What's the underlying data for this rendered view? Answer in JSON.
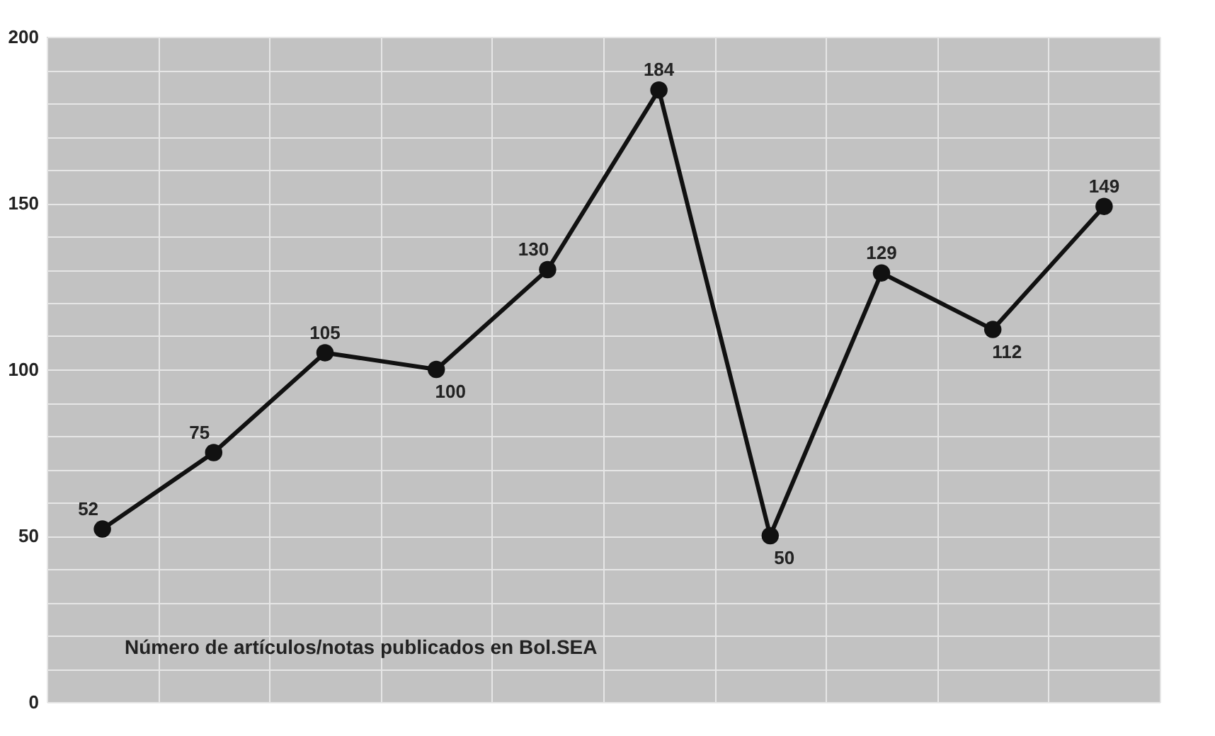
{
  "chart_data": {
    "type": "line",
    "categories": [
      null,
      null,
      null,
      null,
      null,
      null,
      null,
      null,
      null,
      null
    ],
    "series": [
      {
        "color": "#111111",
        "values": [
          52,
          75,
          105,
          100,
          130,
          184,
          50,
          129,
          112,
          149
        ]
      }
    ],
    "ylim": [
      0,
      200
    ],
    "yticks": [
      0,
      {
        "value": 10,
        "label": null
      },
      {
        "value": 20,
        "label": null
      },
      {
        "value": 30,
        "label": null
      },
      {
        "value": 40,
        "label": null
      },
      50,
      {
        "value": 60,
        "label": null
      },
      {
        "value": 70,
        "label": null
      },
      {
        "value": 80,
        "label": null
      },
      {
        "value": 90,
        "label": null
      },
      100,
      {
        "value": 110,
        "label": null
      },
      {
        "value": 120,
        "label": null
      },
      {
        "value": 130,
        "label": null
      },
      {
        "value": 140,
        "label": null
      },
      150,
      {
        "value": 160,
        "label": null
      },
      {
        "value": 170,
        "label": null
      },
      {
        "value": 180,
        "label": null
      },
      {
        "value": 190,
        "label": null
      },
      200
    ],
    "grid": true,
    "marker": "circle",
    "line_style": "solid",
    "data_labels": true,
    "tick_labels": "y",
    "annotations": [
      "Número de artículos/notas publicados en Bol.SEA"
    ]
  }
}
